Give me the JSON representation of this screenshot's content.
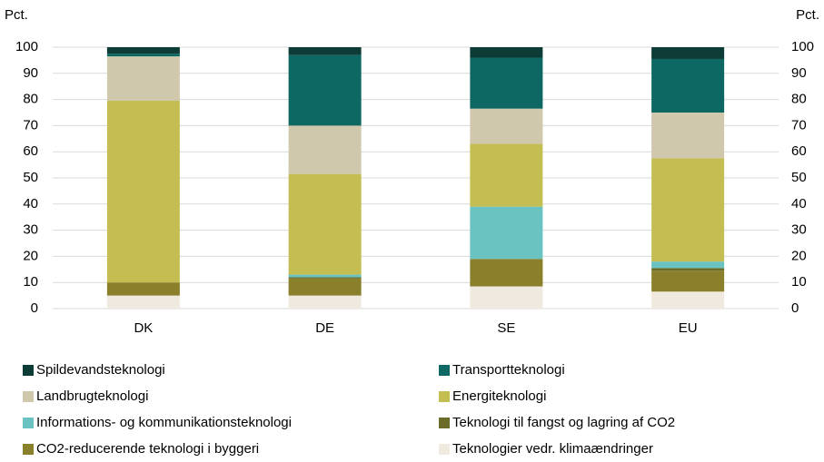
{
  "chart_data": {
    "type": "stacked_bar",
    "y_label": "Pct.",
    "y2_label": "Pct.",
    "categories": [
      "DK",
      "DE",
      "SE",
      "EU"
    ],
    "series": [
      {
        "name": "Spildevandsteknologi",
        "color": "#0d3b36",
        "values": [
          2.5,
          3,
          4,
          4.5
        ]
      },
      {
        "name": "Transportteknologi",
        "color": "#0d6864",
        "values": [
          1,
          27,
          19.5,
          20.5
        ]
      },
      {
        "name": "Landbrugteknologi",
        "color": "#cfc8ad",
        "values": [
          17,
          18.5,
          13.5,
          17.5
        ]
      },
      {
        "name": "Energiteknologi",
        "color": "#c4be52",
        "values": [
          69.5,
          38.5,
          24,
          39.5
        ]
      },
      {
        "name": "Informations- og kommunikationsteknologi",
        "color": "#6ac3c0",
        "values": [
          0,
          1,
          20,
          2.5
        ]
      },
      {
        "name": "Teknologi til fangst og lagring af CO2",
        "color": "#6b6b2a",
        "values": [
          0,
          0.5,
          0,
          1
        ]
      },
      {
        "name": "CO2-reducerende teknologi i byggeri",
        "color": "#8a7f2a",
        "values": [
          5,
          6.5,
          10.5,
          8
        ]
      },
      {
        "name": "Teknologier vedr. klimaændringer",
        "color": "#f0e9df",
        "values": [
          5,
          5,
          8.5,
          6.5
        ]
      }
    ],
    "ylim": [
      0,
      100
    ],
    "yticks": [
      0,
      10,
      20,
      30,
      40,
      50,
      60,
      70,
      80,
      90,
      100
    ],
    "y2lim": [
      0,
      100
    ],
    "y2ticks": [
      0,
      10,
      20,
      30,
      40,
      50,
      60,
      70,
      80,
      90,
      100
    ],
    "grid": true
  }
}
